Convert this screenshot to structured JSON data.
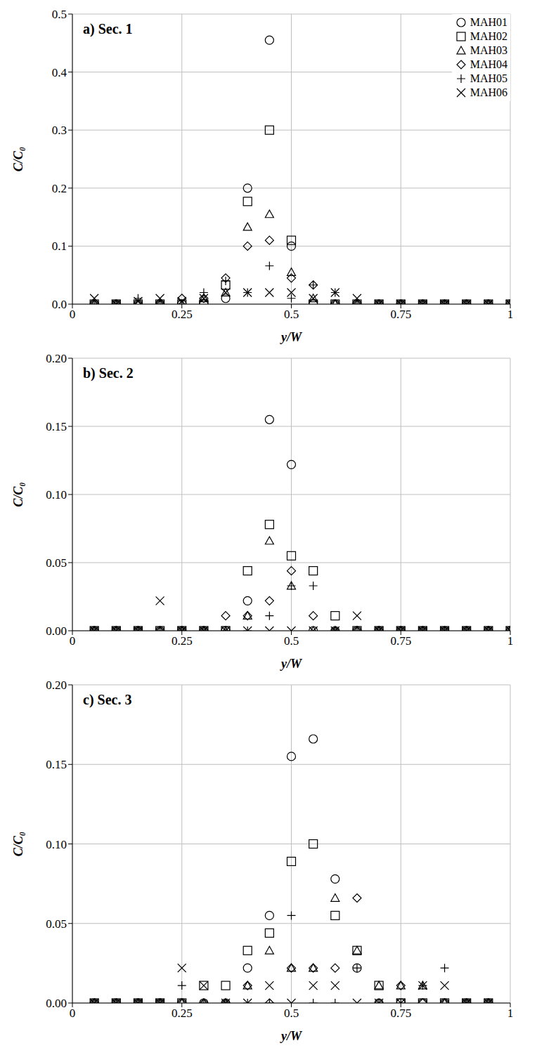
{
  "chart_data": [
    {
      "type": "scatter",
      "title": "a) Sec. 1",
      "x_label": "y/W",
      "y_label": "C/C₀",
      "xlim": [
        0,
        1
      ],
      "xticks": [
        0,
        0.25,
        0.5,
        0.75,
        1
      ],
      "ylim": [
        0,
        0.5
      ],
      "yticks": [
        {
          "value": 0,
          "label": "0.0"
        },
        0.1,
        0.2,
        0.3,
        0.4,
        0.5
      ],
      "grid": true,
      "legend": "upper right",
      "x": [
        0.05,
        0.1,
        0.15,
        0.2,
        0.25,
        0.3,
        0.35,
        0.4,
        0.45,
        0.5,
        0.55,
        0.6,
        0.65,
        0.7,
        0.75,
        0.8,
        0.85,
        0.9,
        0.95,
        1
      ],
      "series": [
        {
          "name": "MAH01",
          "marker": "circle",
          "color": "#000000",
          "values": [
            0,
            0,
            0,
            0,
            0,
            0,
            0.01,
            0.2,
            0.455,
            0.1,
            0,
            0,
            0,
            0,
            0,
            0,
            0,
            0,
            0,
            0
          ]
        },
        {
          "name": "MAH02",
          "marker": "square",
          "color": "#000000",
          "values": [
            0,
            0,
            0,
            0,
            0,
            0,
            0.033,
            0.177,
            0.3,
            0.11,
            0,
            0,
            0,
            0,
            0,
            0,
            0,
            0,
            0,
            0
          ]
        },
        {
          "name": "MAH03",
          "marker": "triangle",
          "color": "#000000",
          "values": [
            0,
            0,
            0,
            0,
            0,
            0.01,
            0.02,
            0.133,
            0.155,
            0.055,
            0.01,
            0,
            0,
            0,
            0,
            0,
            0,
            0,
            0,
            0
          ]
        },
        {
          "name": "MAH04",
          "marker": "diamond",
          "color": "#000000",
          "values": [
            0,
            0,
            0,
            0,
            0.01,
            0.01,
            0.045,
            0.1,
            0.11,
            0.045,
            0.033,
            0,
            0,
            0,
            0,
            0,
            0,
            0,
            0,
            0
          ]
        },
        {
          "name": "MAH05",
          "marker": "plus",
          "color": "#000000",
          "values": [
            0,
            0,
            0.01,
            0,
            0,
            0.02,
            0.04,
            0.02,
            0.066,
            0.01,
            0.033,
            0.02,
            0,
            0,
            0,
            0,
            0,
            0,
            0,
            0
          ]
        },
        {
          "name": "MAH06",
          "marker": "x",
          "color": "#000000",
          "values": [
            0.01,
            0,
            0.005,
            0.01,
            0.005,
            0.01,
            0.02,
            0.02,
            0.02,
            0.02,
            0.01,
            0.02,
            0.01,
            0,
            0,
            0,
            0,
            0,
            0,
            0
          ]
        }
      ]
    },
    {
      "type": "scatter",
      "title": "b) Sec. 2",
      "x_label": "y/W",
      "y_label": "C/C₀",
      "xlim": [
        0,
        1
      ],
      "xticks": [
        0,
        0.25,
        0.5,
        0.75,
        1
      ],
      "ylim": [
        0,
        0.2
      ],
      "yticks": [
        {
          "value": 0,
          "label": "0.00"
        },
        0.05,
        {
          "value": 0.1,
          "label": "0.10"
        },
        0.15,
        {
          "value": 0.2,
          "label": "0.20"
        }
      ],
      "grid": true,
      "x": [
        0.05,
        0.1,
        0.15,
        0.2,
        0.25,
        0.3,
        0.35,
        0.4,
        0.45,
        0.5,
        0.55,
        0.6,
        0.65,
        0.7,
        0.75,
        0.8,
        0.85,
        0.9,
        0.95,
        1
      ],
      "series": [
        {
          "name": "MAH01",
          "marker": "circle",
          "color": "#000000",
          "values": [
            0,
            0,
            0,
            0,
            0,
            0,
            0,
            0.022,
            0.155,
            0.122,
            0,
            0,
            0,
            0,
            0,
            0,
            0,
            0,
            0,
            0
          ]
        },
        {
          "name": "MAH02",
          "marker": "square",
          "color": "#000000",
          "values": [
            0,
            0,
            0,
            0,
            0,
            0,
            0,
            0.044,
            0.078,
            0.055,
            0.044,
            0.011,
            0,
            0,
            0,
            0,
            0,
            0,
            0,
            0
          ]
        },
        {
          "name": "MAH03",
          "marker": "triangle",
          "color": "#000000",
          "values": [
            0,
            0,
            0,
            0,
            0,
            0,
            0,
            0.011,
            0.066,
            0.033,
            0,
            0,
            0,
            0,
            0,
            0,
            0,
            0,
            0,
            0
          ]
        },
        {
          "name": "MAH04",
          "marker": "diamond",
          "color": "#000000",
          "values": [
            0,
            0,
            0,
            0,
            0,
            0,
            0.011,
            0.011,
            0.022,
            0.044,
            0.011,
            0,
            0,
            0,
            0,
            0,
            0,
            0,
            0,
            0
          ]
        },
        {
          "name": "MAH05",
          "marker": "plus",
          "color": "#000000",
          "values": [
            0,
            0,
            0,
            0,
            0,
            0,
            0,
            0,
            0.011,
            0.033,
            0.033,
            0,
            0,
            0,
            0,
            0,
            0,
            0,
            0,
            0
          ]
        },
        {
          "name": "MAH06",
          "marker": "x",
          "color": "#000000",
          "values": [
            0,
            0,
            0,
            0.022,
            0,
            0,
            0,
            0,
            0,
            0,
            0,
            0,
            0.011,
            0,
            0,
            0,
            0,
            0,
            0,
            0
          ]
        }
      ]
    },
    {
      "type": "scatter",
      "title": "c) Sec. 3",
      "x_label": "y/W",
      "y_label": "C/C₀",
      "xlim": [
        0,
        1
      ],
      "xticks": [
        0,
        0.25,
        0.5,
        0.75,
        1
      ],
      "ylim": [
        0,
        0.2
      ],
      "yticks": [
        {
          "value": 0,
          "label": "0.00"
        },
        0.05,
        {
          "value": 0.1,
          "label": "0.10"
        },
        0.15,
        {
          "value": 0.2,
          "label": "0.20"
        }
      ],
      "grid": true,
      "x": [
        0.05,
        0.1,
        0.15,
        0.2,
        0.25,
        0.3,
        0.35,
        0.4,
        0.45,
        0.5,
        0.55,
        0.6,
        0.65,
        0.7,
        0.75,
        0.8,
        0.85,
        0.9,
        0.95
      ],
      "series": [
        {
          "name": "MAH01",
          "marker": "circle",
          "color": "#000000",
          "values": [
            0,
            0,
            0,
            0,
            0,
            0,
            0,
            0.022,
            0.055,
            0.155,
            0.166,
            0.078,
            0.022,
            0,
            0,
            0,
            0,
            0,
            0
          ]
        },
        {
          "name": "MAH02",
          "marker": "square",
          "color": "#000000",
          "values": [
            0,
            0,
            0,
            0,
            0,
            0.011,
            0.011,
            0.033,
            0.044,
            0.089,
            0.1,
            0.055,
            0.033,
            0.011,
            0,
            0,
            0,
            0,
            0
          ]
        },
        {
          "name": "MAH03",
          "marker": "triangle",
          "color": "#000000",
          "values": [
            0,
            0,
            0,
            0,
            0,
            0,
            0,
            0.011,
            0.033,
            0.022,
            0.022,
            0.066,
            0.033,
            0.011,
            0.011,
            0.011,
            0,
            0,
            0
          ]
        },
        {
          "name": "MAH04",
          "marker": "diamond",
          "color": "#000000",
          "values": [
            0,
            0,
            0,
            0,
            0,
            0,
            0,
            0.011,
            0,
            0.022,
            0.022,
            0.022,
            0.066,
            0,
            0.011,
            0,
            0,
            0,
            0
          ]
        },
        {
          "name": "MAH05",
          "marker": "plus",
          "color": "#000000",
          "values": [
            0,
            0,
            0,
            0,
            0.011,
            0,
            0,
            0,
            0,
            0.055,
            0,
            0,
            0.022,
            0,
            0,
            0.011,
            0.022,
            0,
            0
          ]
        },
        {
          "name": "MAH06",
          "marker": "x",
          "color": "#000000",
          "values": [
            0,
            0,
            0,
            0,
            0.022,
            0.011,
            0,
            0,
            0.011,
            0,
            0.011,
            0.011,
            0,
            0,
            0,
            0.011,
            0.011,
            0,
            0
          ]
        }
      ]
    }
  ]
}
